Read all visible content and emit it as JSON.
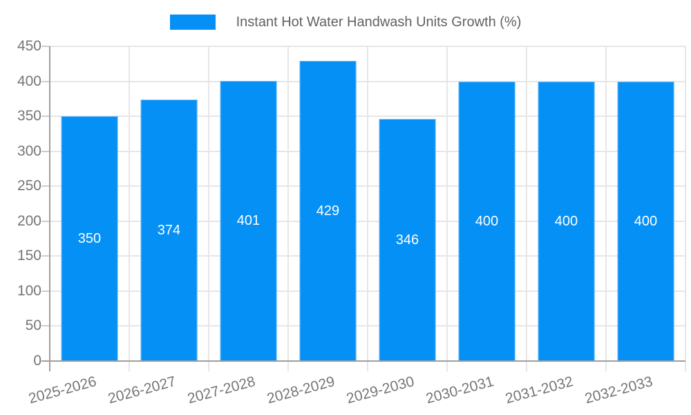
{
  "legend": {
    "label": "Instant Hot Water Handwash Units Growth (%)"
  },
  "colors": {
    "bar_fill": "#0590F6",
    "bar_edge": "#6CB9F8",
    "grid_line": "#E6E6E6",
    "axis_line": "#9E9E9E",
    "tick_mark": "#CCCCCC",
    "axis_label_text": "#757575",
    "legend_text": "#616161",
    "value_label_text": "#FFFFFF",
    "background": "#FFFFFF"
  },
  "chart_data": {
    "type": "bar",
    "title": "Instant Hot Water Handwash Units Growth (%)",
    "categories": [
      "2025-2026",
      "2026-2027",
      "2027-2028",
      "2028-2029",
      "2029-2030",
      "2030-2031",
      "2031-2032",
      "2032-2033"
    ],
    "values": [
      350,
      374,
      401,
      429,
      346,
      400,
      400,
      400
    ],
    "xlabel": "",
    "ylabel": "",
    "ylim": [
      0,
      450
    ],
    "yticks": [
      0,
      50,
      100,
      150,
      200,
      250,
      300,
      350,
      400,
      450
    ],
    "grid": "horizontal gridlines at each y tick, vertical gridlines at category boundaries",
    "legend_position": "top-center",
    "value_labels": "white, centered inside bars",
    "x_label_rotation_deg": -15
  }
}
